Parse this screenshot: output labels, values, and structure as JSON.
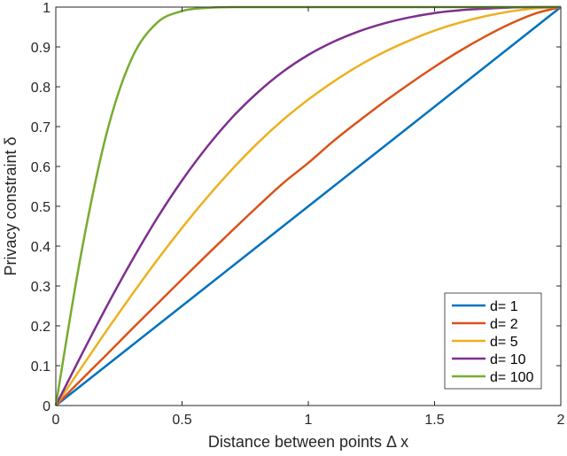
{
  "chart_data": {
    "type": "line",
    "title": "",
    "xlabel": "Distance between points Δ x",
    "ylabel": "Privacy constraint δ",
    "xlim": [
      0,
      2
    ],
    "ylim": [
      0,
      1
    ],
    "grid": false,
    "legend_position": "lower right",
    "xticks": [
      "0",
      "0.5",
      "1",
      "1.5",
      "2"
    ],
    "yticks": [
      "0",
      "0.1",
      "0.2",
      "0.3",
      "0.4",
      "0.5",
      "0.6",
      "0.7",
      "0.8",
      "0.9",
      "1"
    ],
    "x": [
      0,
      0.1,
      0.2,
      0.3,
      0.4,
      0.5,
      0.6,
      0.7,
      0.8,
      0.9,
      1.0,
      1.1,
      1.2,
      1.3,
      1.4,
      1.5,
      1.6,
      1.7,
      1.8,
      1.9,
      2.0
    ],
    "series": [
      {
        "name": "d= 1",
        "color": "#0072BD",
        "values": [
          0,
          0.05,
          0.1,
          0.15,
          0.2,
          0.25,
          0.3,
          0.35,
          0.4,
          0.45,
          0.5,
          0.55,
          0.6,
          0.65,
          0.7,
          0.75,
          0.8,
          0.85,
          0.9,
          0.95,
          1.0
        ]
      },
      {
        "name": "d= 2",
        "color": "#D95319",
        "values": [
          0,
          0.064,
          0.127,
          0.191,
          0.254,
          0.317,
          0.379,
          0.44,
          0.5,
          0.558,
          0.609,
          0.664,
          0.714,
          0.762,
          0.807,
          0.85,
          0.89,
          0.926,
          0.958,
          0.984,
          1.0
        ]
      },
      {
        "name": "d= 5",
        "color": "#EDB120",
        "values": [
          0,
          0.094,
          0.187,
          0.277,
          0.364,
          0.446,
          0.523,
          0.594,
          0.659,
          0.717,
          0.768,
          0.813,
          0.853,
          0.887,
          0.916,
          0.941,
          0.961,
          0.977,
          0.989,
          0.997,
          1.0
        ]
      },
      {
        "name": "d= 10",
        "color": "#7E2F8E",
        "values": [
          0,
          0.125,
          0.247,
          0.362,
          0.469,
          0.565,
          0.65,
          0.724,
          0.786,
          0.838,
          0.88,
          0.913,
          0.939,
          0.959,
          0.974,
          0.985,
          0.992,
          0.996,
          0.999,
          1.0,
          1.0
        ]
      },
      {
        "name": "d= 100",
        "color": "#77AC30",
        "values": [
          0,
          0.38,
          0.68,
          0.87,
          0.96,
          0.99,
          0.998,
          1.0,
          1.0,
          1.0,
          1.0,
          1.0,
          1.0,
          1.0,
          1.0,
          1.0,
          1.0,
          1.0,
          1.0,
          1.0,
          1.0
        ]
      }
    ]
  }
}
